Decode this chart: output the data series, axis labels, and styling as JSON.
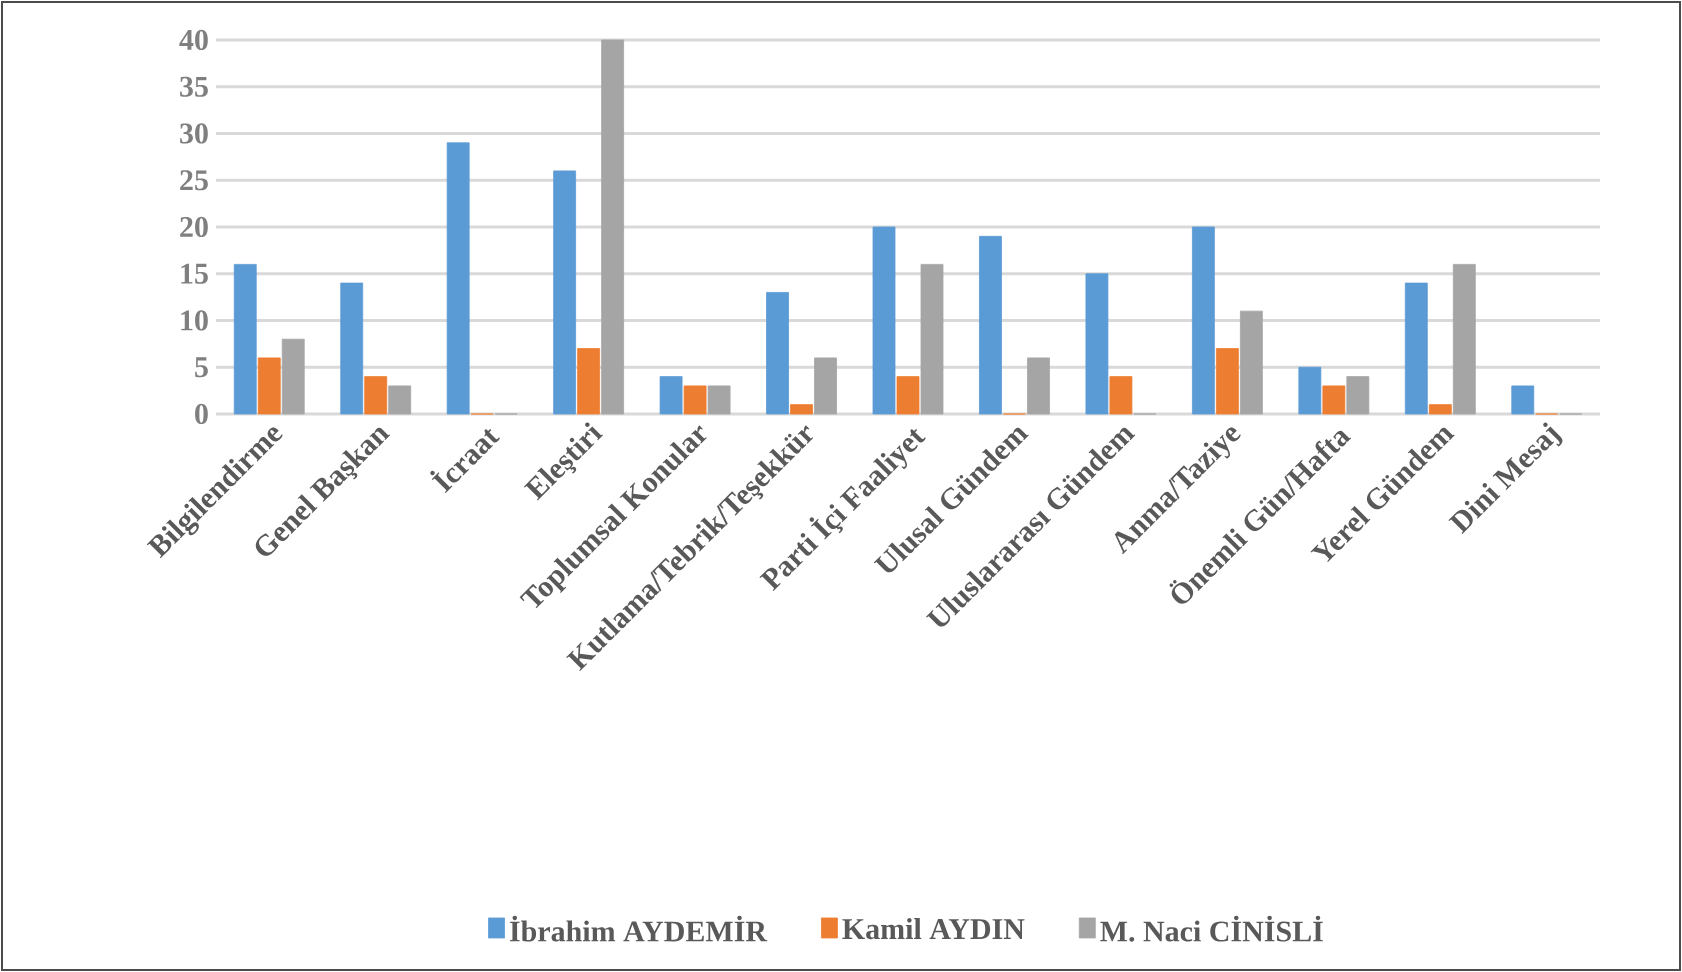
{
  "chart_data": {
    "type": "bar",
    "categories": [
      "Bilgilendirme",
      "Genel Başkan",
      "İcraat",
      "Eleştiri",
      "Toplumsal Konular",
      "Kutlama/Tebrik/Teşekkür",
      "Parti İçi Faaliyet",
      "Ulusal Gündem",
      "Uluslararası Gündem",
      "Anma/Taziye",
      "Önemli Gün/Hafta",
      "Yerel Gündem",
      "Dini Mesaj"
    ],
    "series": [
      {
        "name": "İbrahim AYDEMİR",
        "color": "#5b9bd5",
        "values": [
          16,
          14,
          29,
          26,
          4,
          13,
          20,
          19,
          15,
          20,
          5,
          14,
          3
        ]
      },
      {
        "name": "Kamil AYDIN",
        "color": "#ed7d31",
        "values": [
          6,
          4,
          0,
          7,
          3,
          1,
          4,
          0,
          4,
          7,
          3,
          1,
          0
        ]
      },
      {
        "name": "M. Naci CİNİSLİ",
        "color": "#a5a5a5",
        "values": [
          8,
          3,
          0,
          40,
          3,
          6,
          16,
          6,
          0,
          11,
          4,
          16,
          0
        ]
      }
    ],
    "ylim": [
      0,
      40
    ],
    "yticks": [
      0,
      5,
      10,
      15,
      20,
      25,
      30,
      35,
      40
    ],
    "grid": "y",
    "legend": "bottom"
  }
}
